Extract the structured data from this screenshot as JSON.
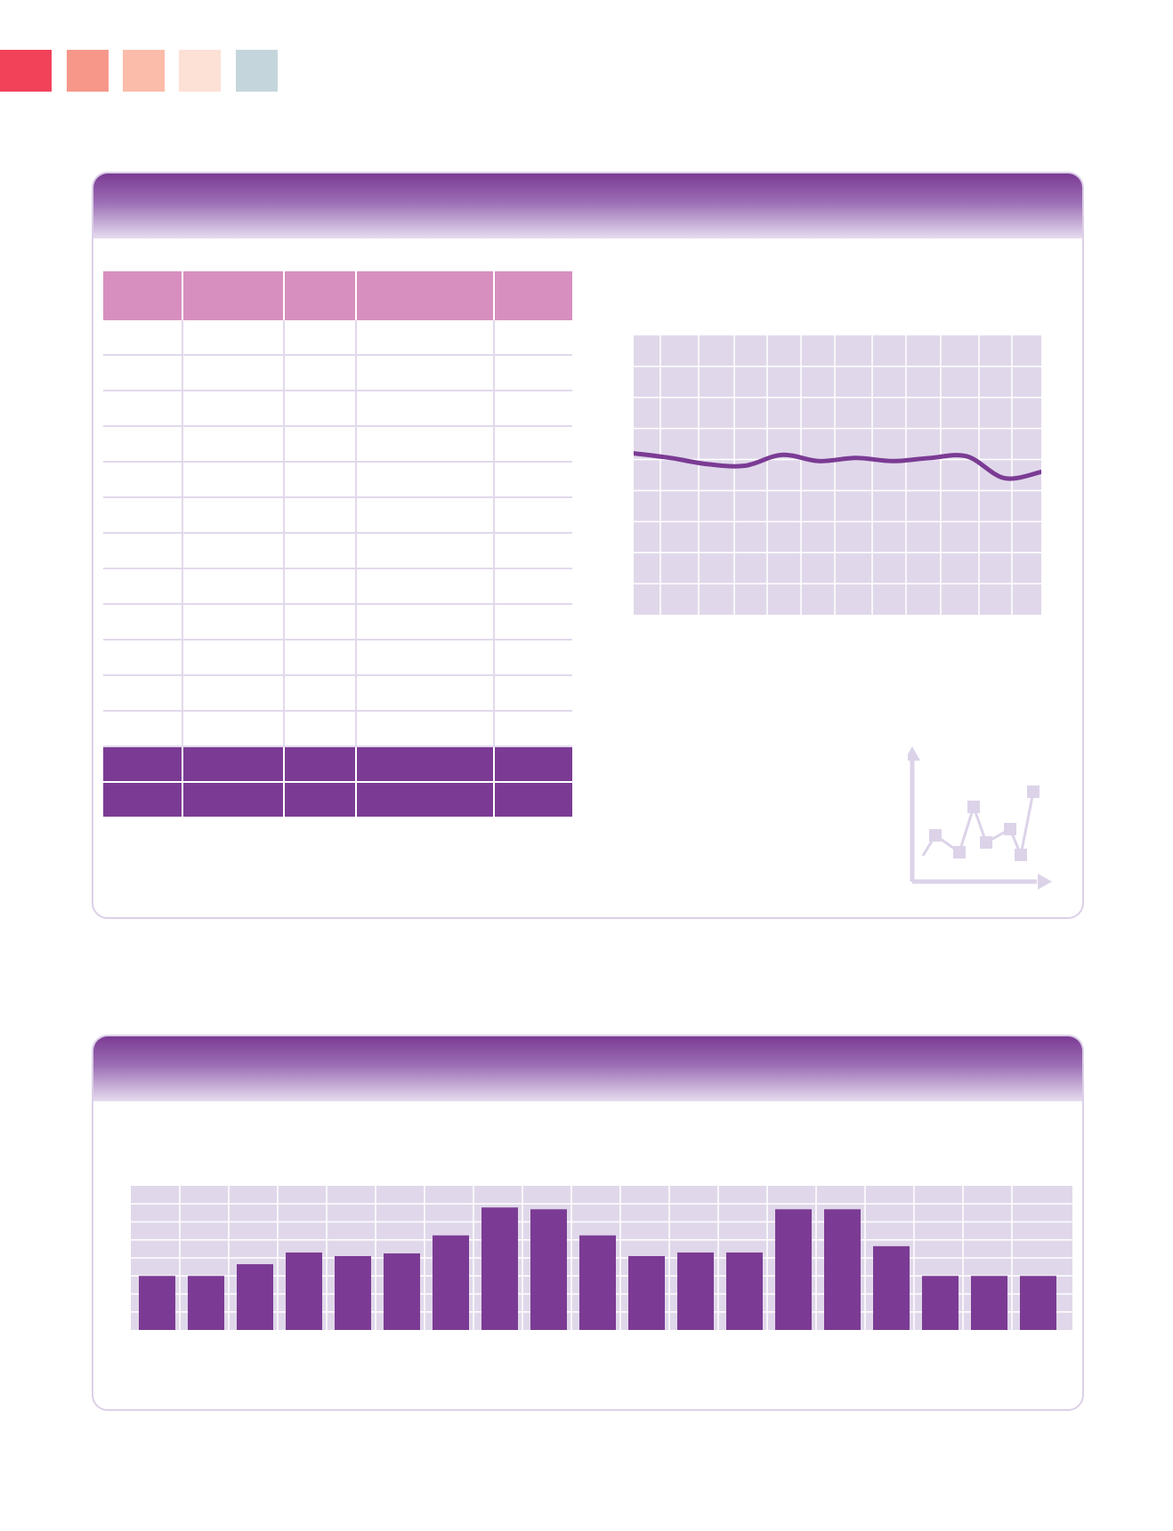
{
  "palette": {
    "swatches": [
      "#f2425a",
      "#f7978a",
      "#fbbcaa",
      "#fde0d6",
      "#c4d6dc"
    ],
    "accent": "#7b3b94",
    "table_header": "#d78fbf",
    "plot_background": "#e0d8ea",
    "icon": "#dcd3e9"
  },
  "table": {
    "columns": [
      "",
      "",
      "",
      "",
      ""
    ],
    "rows": [
      [
        "",
        "",
        "",
        "",
        ""
      ],
      [
        "",
        "",
        "",
        "",
        ""
      ],
      [
        "",
        "",
        "",
        "",
        ""
      ],
      [
        "",
        "",
        "",
        "",
        ""
      ],
      [
        "",
        "",
        "",
        "",
        ""
      ],
      [
        "",
        "",
        "",
        "",
        ""
      ],
      [
        "",
        "",
        "",
        "",
        ""
      ],
      [
        "",
        "",
        "",
        "",
        ""
      ],
      [
        "",
        "",
        "",
        "",
        ""
      ],
      [
        "",
        "",
        "",
        "",
        ""
      ],
      [
        "",
        "",
        "",
        "",
        ""
      ],
      [
        "",
        "",
        "",
        "",
        ""
      ]
    ],
    "footer_rows": [
      [
        "",
        "",
        "",
        "",
        ""
      ],
      [
        "",
        "",
        "",
        "",
        ""
      ]
    ]
  },
  "decoration": {
    "icon": "line-chart-icon"
  },
  "chart_data": [
    {
      "type": "line",
      "title": "",
      "xlabel": "",
      "ylabel": "",
      "ylim": [
        0,
        9
      ],
      "grid": true,
      "series": [
        {
          "values": [
            5.2,
            5.05,
            4.85,
            4.8,
            5.15,
            4.95,
            5.05,
            4.95,
            5.05,
            5.1,
            4.4,
            4.6
          ]
        }
      ]
    },
    {
      "type": "bar",
      "title": "",
      "xlabel": "",
      "ylabel": "",
      "ylim": [
        0,
        8
      ],
      "grid": true,
      "values": [
        3.0,
        3.0,
        3.65,
        4.3,
        4.1,
        4.25,
        5.25,
        6.8,
        6.7,
        5.25,
        4.1,
        4.3,
        4.3,
        6.7,
        6.7,
        4.65,
        3.0,
        3.0,
        3.0
      ]
    }
  ]
}
